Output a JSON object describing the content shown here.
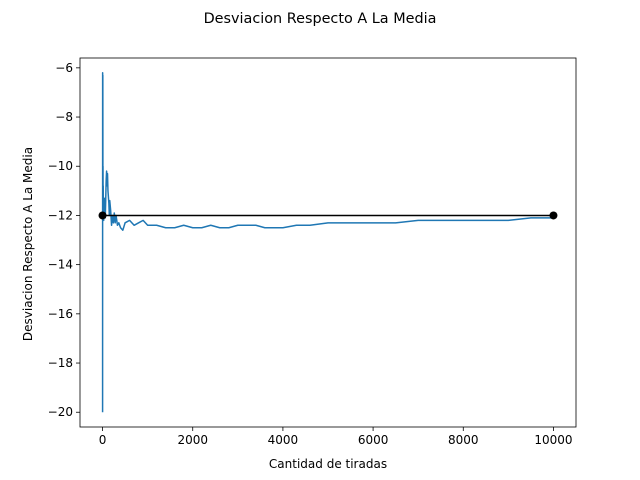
{
  "chart_data": {
    "type": "line",
    "title": "Desviacion Respecto A La Media",
    "xlabel": "Cantidad de tiradas",
    "ylabel": "Desviacion Respecto A La Media",
    "xlim": [
      -500,
      10500
    ],
    "ylim": [
      -20.6,
      -5.6
    ],
    "x_ticks": [
      0,
      2000,
      4000,
      6000,
      8000,
      10000
    ],
    "x_tick_labels": [
      "0",
      "2000",
      "4000",
      "6000",
      "8000",
      "10000"
    ],
    "y_ticks": [
      -20,
      -18,
      -16,
      -14,
      -12,
      -10,
      -8,
      -6
    ],
    "y_tick_labels": [
      "−20",
      "−18",
      "−16",
      "−14",
      "−12",
      "−10",
      "−8",
      "−6"
    ],
    "grid": false,
    "legend": "none",
    "series": [
      {
        "kind": "line",
        "color": "#1f77b4",
        "x": [
          1,
          2,
          3,
          4,
          5,
          6,
          8,
          10,
          12,
          15,
          18,
          22,
          26,
          30,
          35,
          40,
          45,
          50,
          60,
          70,
          80,
          90,
          100,
          110,
          120,
          140,
          150,
          160,
          180,
          200,
          220,
          240,
          260,
          280,
          300,
          330,
          360,
          400,
          450,
          500,
          600,
          700,
          800,
          900,
          1000,
          1200,
          1400,
          1600,
          1800,
          2000,
          2200,
          2400,
          2600,
          2800,
          3000,
          3200,
          3400,
          3600,
          3800,
          4000,
          4300,
          4600,
          5000,
          5500,
          6000,
          6500,
          7000,
          7500,
          8000,
          8500,
          9000,
          9500,
          10000
        ],
        "y": [
          -20.0,
          -6.2,
          -11.5,
          -7.0,
          -9.5,
          -6.3,
          -10.5,
          -10.0,
          -11.2,
          -10.8,
          -11.8,
          -11.4,
          -12.2,
          -11.6,
          -12.0,
          -11.3,
          -11.9,
          -11.5,
          -12.1,
          -11.4,
          -10.6,
          -10.2,
          -10.8,
          -10.3,
          -11.0,
          -11.5,
          -12.0,
          -11.4,
          -11.8,
          -12.4,
          -12.0,
          -12.3,
          -11.9,
          -12.3,
          -12.0,
          -12.4,
          -12.3,
          -12.5,
          -12.6,
          -12.3,
          -12.2,
          -12.4,
          -12.3,
          -12.2,
          -12.4,
          -12.4,
          -12.5,
          -12.5,
          -12.4,
          -12.5,
          -12.5,
          -12.4,
          -12.5,
          -12.5,
          -12.4,
          -12.4,
          -12.4,
          -12.5,
          -12.5,
          -12.5,
          -12.4,
          -12.4,
          -12.3,
          -12.3,
          -12.3,
          -12.3,
          -12.2,
          -12.2,
          -12.2,
          -12.2,
          -12.2,
          -12.1,
          -12.1
        ]
      },
      {
        "kind": "reference-line",
        "color": "#000000",
        "x": [
          0,
          10000
        ],
        "y": [
          -12,
          -12
        ]
      }
    ]
  }
}
